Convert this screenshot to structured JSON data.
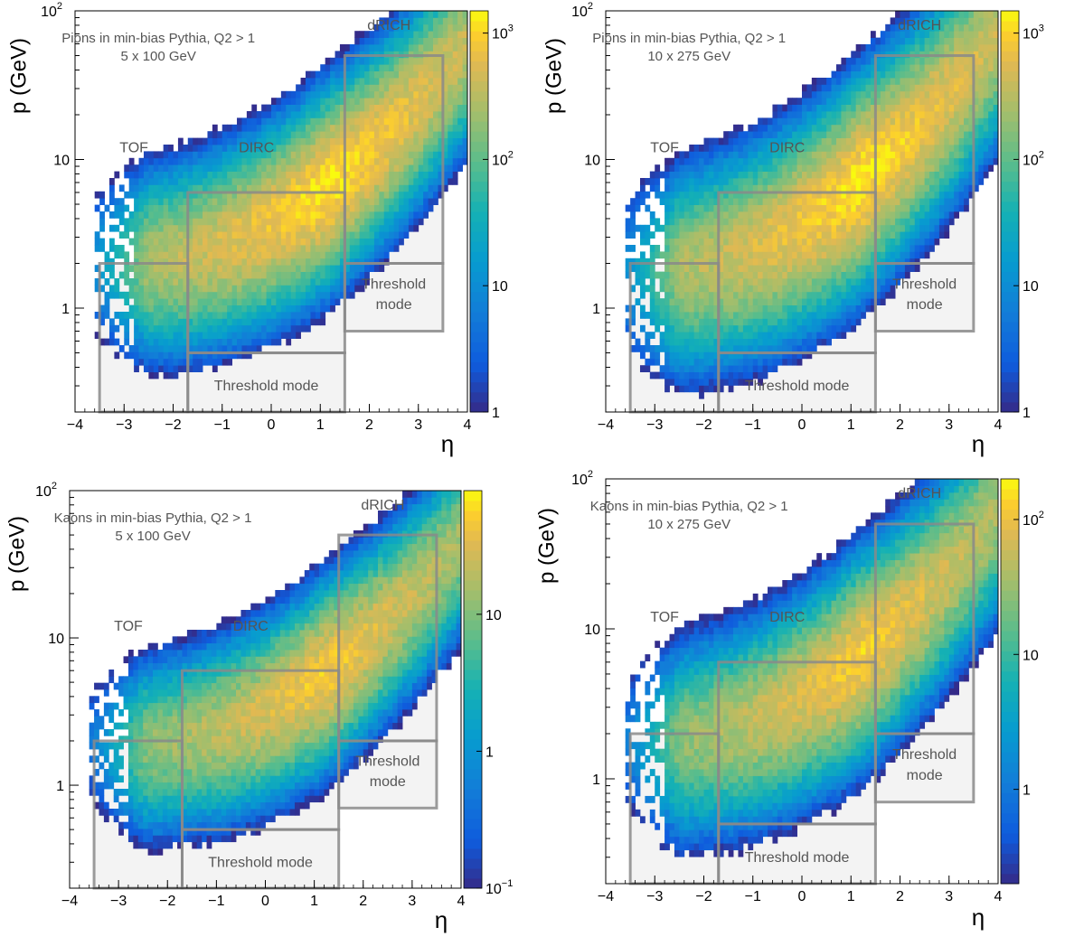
{
  "chart_data": [
    {
      "type": "heatmap",
      "title": "",
      "annotation_lines": [
        "Pions in min-bias Pythia, Q2 > 1",
        "5 x 100 GeV"
      ],
      "xlabel": "η",
      "ylabel": "p (GeV)",
      "xlim": [
        -4,
        4
      ],
      "ylim": [
        0.2,
        100
      ],
      "yscale": "log",
      "zscale": "log",
      "zlim": [
        1,
        1500
      ],
      "colormap": "parula",
      "x_ticks": [
        -4,
        -3,
        -2,
        -1,
        0,
        1,
        2,
        3,
        4
      ],
      "y_tick_labels": [
        {
          "v": 1,
          "t": "1"
        },
        {
          "v": 10,
          "t": "10"
        },
        {
          "v": 100,
          "t": "10",
          "sup": "2"
        }
      ],
      "z_tick_labels": [
        {
          "v": 1,
          "t": "1"
        },
        {
          "v": 10,
          "t": "10"
        },
        {
          "v": 100,
          "t": "10",
          "sup": "2"
        },
        {
          "v": 1000,
          "t": "10",
          "sup": "3"
        }
      ],
      "density": {
        "ridge_base": 0.62,
        "ridge_slope": 0.18,
        "width": 0.55,
        "zmax_log": 3.1,
        "edge_upper": 1.1,
        "edge_slope": 0.145,
        "edge_high_eta": 0.6
      },
      "regions": [
        {
          "label": "TOF",
          "eta": [
            -3.5,
            -1.7
          ],
          "p": [
            0.2,
            2.0
          ]
        },
        {
          "label": "DIRC",
          "eta": [
            -1.7,
            1.5
          ],
          "p": [
            0.5,
            6.0
          ]
        },
        {
          "label": "dRICH",
          "eta": [
            1.5,
            3.5
          ],
          "p": [
            2.0,
            50
          ]
        },
        {
          "label": "Threshold mode",
          "eta": [
            -1.7,
            1.5
          ],
          "p": [
            0.2,
            0.5
          ]
        },
        {
          "label": "Threshold mode",
          "eta": [
            1.5,
            3.5
          ],
          "p": [
            0.7,
            2.0
          ]
        }
      ],
      "region_labels": {
        "tof": "TOF",
        "dirc": "DIRC",
        "drich": "dRICH",
        "thr_low": "Threshold mode",
        "thr_high_1": "Threshold",
        "thr_high_2": "mode"
      }
    },
    {
      "type": "heatmap",
      "title": "",
      "annotation_lines": [
        "Pions in min-bias Pythia, Q2 > 1",
        "10 x 275 GeV"
      ],
      "xlabel": "η",
      "ylabel": "p (GeV)",
      "xlim": [
        -4,
        4
      ],
      "ylim": [
        0.2,
        100
      ],
      "yscale": "log",
      "zscale": "log",
      "zlim": [
        1,
        1500
      ],
      "colormap": "parula",
      "x_ticks": [
        -4,
        -3,
        -2,
        -1,
        0,
        1,
        2,
        3,
        4
      ],
      "y_tick_labels": [
        {
          "v": 1,
          "t": "1"
        },
        {
          "v": 10,
          "t": "10"
        },
        {
          "v": 100,
          "t": "10",
          "sup": "2"
        }
      ],
      "z_tick_labels": [
        {
          "v": 1,
          "t": "1"
        },
        {
          "v": 10,
          "t": "10"
        },
        {
          "v": 100,
          "t": "10",
          "sup": "2"
        },
        {
          "v": 1000,
          "t": "10",
          "sup": "3"
        }
      ],
      "density": {
        "ridge_base": 0.62,
        "ridge_slope": 0.2,
        "width": 0.6,
        "zmax_log": 3.1,
        "edge_upper": 1.25,
        "edge_slope": 0.16,
        "edge_high_eta": 0.75
      },
      "regions": [
        {
          "label": "TOF",
          "eta": [
            -3.5,
            -1.7
          ],
          "p": [
            0.2,
            2.0
          ]
        },
        {
          "label": "DIRC",
          "eta": [
            -1.7,
            1.5
          ],
          "p": [
            0.5,
            6.0
          ]
        },
        {
          "label": "dRICH",
          "eta": [
            1.5,
            3.5
          ],
          "p": [
            2.0,
            50
          ]
        },
        {
          "label": "Threshold mode",
          "eta": [
            -1.7,
            1.5
          ],
          "p": [
            0.2,
            0.5
          ]
        },
        {
          "label": "Threshold mode",
          "eta": [
            1.5,
            3.5
          ],
          "p": [
            0.7,
            2.0
          ]
        }
      ],
      "region_labels": {
        "tof": "TOF",
        "dirc": "DIRC",
        "drich": "dRICH",
        "thr_low": "Threshold mode",
        "thr_high_1": "Threshold",
        "thr_high_2": "mode"
      }
    },
    {
      "type": "heatmap",
      "title": "",
      "annotation_lines": [
        "Kaons in min-bias Pythia, Q2 > 1",
        "5 x 100 GeV"
      ],
      "xlabel": "η",
      "ylabel": "p (GeV)",
      "xlim": [
        -4,
        4
      ],
      "ylim": [
        0.2,
        100
      ],
      "yscale": "log",
      "zscale": "log",
      "zlim": [
        0.1,
        80
      ],
      "colormap": "parula",
      "x_ticks": [
        -4,
        -3,
        -2,
        -1,
        0,
        1,
        2,
        3,
        4
      ],
      "y_tick_labels": [
        {
          "v": 1,
          "t": "1"
        },
        {
          "v": 10,
          "t": "10"
        },
        {
          "v": 100,
          "t": "10",
          "sup": "2"
        }
      ],
      "z_tick_labels": [
        {
          "v": 0.1,
          "t": "10",
          "sup": "−1"
        },
        {
          "v": 1,
          "t": "1"
        },
        {
          "v": 10,
          "t": "10"
        }
      ],
      "density": {
        "ridge_base": 0.55,
        "ridge_slope": 0.17,
        "width": 0.55,
        "zmax_log": 1.7,
        "edge_upper": 1.05,
        "edge_slope": 0.14,
        "edge_high_eta": 0.6
      },
      "regions": [
        {
          "label": "TOF",
          "eta": [
            -3.5,
            -1.7
          ],
          "p": [
            0.2,
            2.0
          ]
        },
        {
          "label": "DIRC",
          "eta": [
            -1.7,
            1.5
          ],
          "p": [
            0.5,
            6.0
          ]
        },
        {
          "label": "dRICH",
          "eta": [
            1.5,
            3.5
          ],
          "p": [
            2.0,
            50
          ]
        },
        {
          "label": "Threshold mode",
          "eta": [
            -1.7,
            1.5
          ],
          "p": [
            0.2,
            0.5
          ]
        },
        {
          "label": "Threshold mode",
          "eta": [
            1.5,
            3.5
          ],
          "p": [
            0.7,
            2.0
          ]
        }
      ],
      "region_labels": {
        "tof": "TOF",
        "dirc": "DIRC",
        "drich": "dRICH",
        "thr_low": "Threshold mode",
        "thr_high_1": "Threshold",
        "thr_high_2": "mode"
      }
    },
    {
      "type": "heatmap",
      "title": "",
      "annotation_lines": [
        "Kaons in min-bias Pythia, Q2 > 1",
        "10 x 275 GeV"
      ],
      "xlabel": "η",
      "ylabel": "p (GeV)",
      "xlim": [
        -4,
        4
      ],
      "ylim": [
        0.2,
        100
      ],
      "yscale": "log",
      "zscale": "log",
      "zlim": [
        0.2,
        200
      ],
      "colormap": "parula",
      "x_ticks": [
        -4,
        -3,
        -2,
        -1,
        0,
        1,
        2,
        3,
        4
      ],
      "y_tick_labels": [
        {
          "v": 1,
          "t": "1"
        },
        {
          "v": 10,
          "t": "10"
        },
        {
          "v": 100,
          "t": "10",
          "sup": "2"
        }
      ],
      "z_tick_labels": [
        {
          "v": 1,
          "t": "1"
        },
        {
          "v": 10,
          "t": "10"
        },
        {
          "v": 100,
          "t": "10",
          "sup": "2"
        }
      ],
      "density": {
        "ridge_base": 0.6,
        "ridge_slope": 0.19,
        "width": 0.6,
        "zmax_log": 2.1,
        "edge_upper": 1.2,
        "edge_slope": 0.155,
        "edge_high_eta": 0.7
      },
      "regions": [
        {
          "label": "TOF",
          "eta": [
            -3.5,
            -1.7
          ],
          "p": [
            0.2,
            2.0
          ]
        },
        {
          "label": "DIRC",
          "eta": [
            -1.7,
            1.5
          ],
          "p": [
            0.5,
            6.0
          ]
        },
        {
          "label": "dRICH",
          "eta": [
            1.5,
            3.5
          ],
          "p": [
            2.0,
            50
          ]
        },
        {
          "label": "Threshold mode",
          "eta": [
            -1.7,
            1.5
          ],
          "p": [
            0.2,
            0.5
          ]
        },
        {
          "label": "Threshold mode",
          "eta": [
            1.5,
            3.5
          ],
          "p": [
            0.7,
            2.0
          ]
        }
      ],
      "region_labels": {
        "tof": "TOF",
        "dirc": "DIRC",
        "drich": "dRICH",
        "thr_low": "Threshold mode",
        "thr_high_1": "Threshold",
        "thr_high_2": "mode"
      }
    }
  ]
}
